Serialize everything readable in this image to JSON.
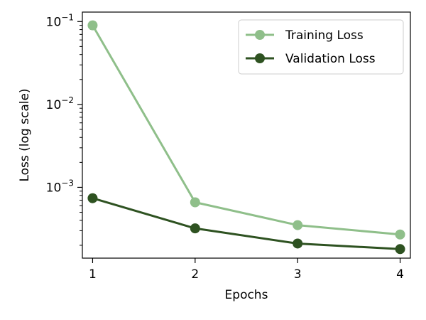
{
  "chart_data": {
    "type": "line",
    "title": "",
    "xlabel": "Epochs",
    "ylabel": "Loss (log scale)",
    "yscale": "log",
    "x": [
      1,
      2,
      3,
      4
    ],
    "xlim": [
      0.9,
      4.1
    ],
    "ylim": [
      0.00014,
      0.13
    ],
    "xticks": [
      {
        "value": 1,
        "label": "1"
      },
      {
        "value": 2,
        "label": "2"
      },
      {
        "value": 3,
        "label": "3"
      },
      {
        "value": 4,
        "label": "4"
      }
    ],
    "yticks": [
      {
        "value": 0.1,
        "base": "10",
        "exp": "−1"
      },
      {
        "value": 0.01,
        "base": "10",
        "exp": "−2"
      },
      {
        "value": 0.001,
        "base": "10",
        "exp": "−3"
      }
    ],
    "series": [
      {
        "name": "Training Loss",
        "color": "#8fbf8a",
        "values": [
          0.09,
          0.00066,
          0.00035,
          0.00027
        ]
      },
      {
        "name": "Validation Loss",
        "color": "#2e5221",
        "values": [
          0.00074,
          0.00032,
          0.00021,
          0.00018
        ]
      }
    ],
    "legend": {
      "position": "top-right"
    },
    "grid": false
  }
}
